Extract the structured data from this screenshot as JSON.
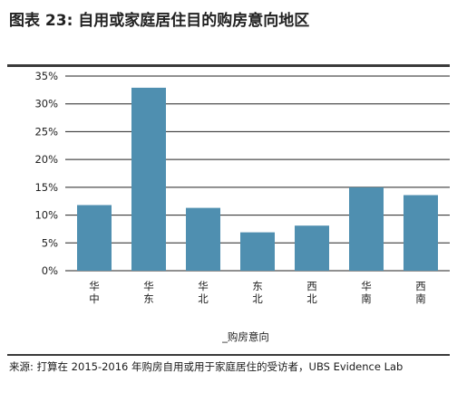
{
  "figure": {
    "title": "图表 23: 自用或家庭居住目的购房意向地区",
    "source": "来源: 打算在 2015-2016 年购房自用或用于家庭居住的受访者，UBS Evidence Lab"
  },
  "chart_data": {
    "type": "bar",
    "title": "图表 23: 自用或家庭居住目的购房意向地区",
    "xlabel": "_购房意向",
    "ylabel": "",
    "categories": [
      "华中",
      "华东",
      "华北",
      "东北",
      "西北",
      "华南",
      "西南"
    ],
    "category_lines": [
      [
        "华",
        "中"
      ],
      [
        "华",
        "东"
      ],
      [
        "华",
        "北"
      ],
      [
        "东",
        "北"
      ],
      [
        "西",
        "北"
      ],
      [
        "华",
        "南"
      ],
      [
        "西",
        "南"
      ]
    ],
    "values": [
      11.8,
      32.9,
      11.3,
      6.9,
      8.1,
      15.0,
      13.6
    ],
    "ylim": [
      0,
      35
    ],
    "yticks": [
      0,
      5,
      10,
      15,
      20,
      25,
      30,
      35
    ],
    "ytick_labels": [
      "0%",
      "5%",
      "10%",
      "15%",
      "20%",
      "25%",
      "30%",
      "35%"
    ],
    "grid": true,
    "legend": "none",
    "bar_color": "#4f8fb0",
    "grid_color": "#222222"
  }
}
